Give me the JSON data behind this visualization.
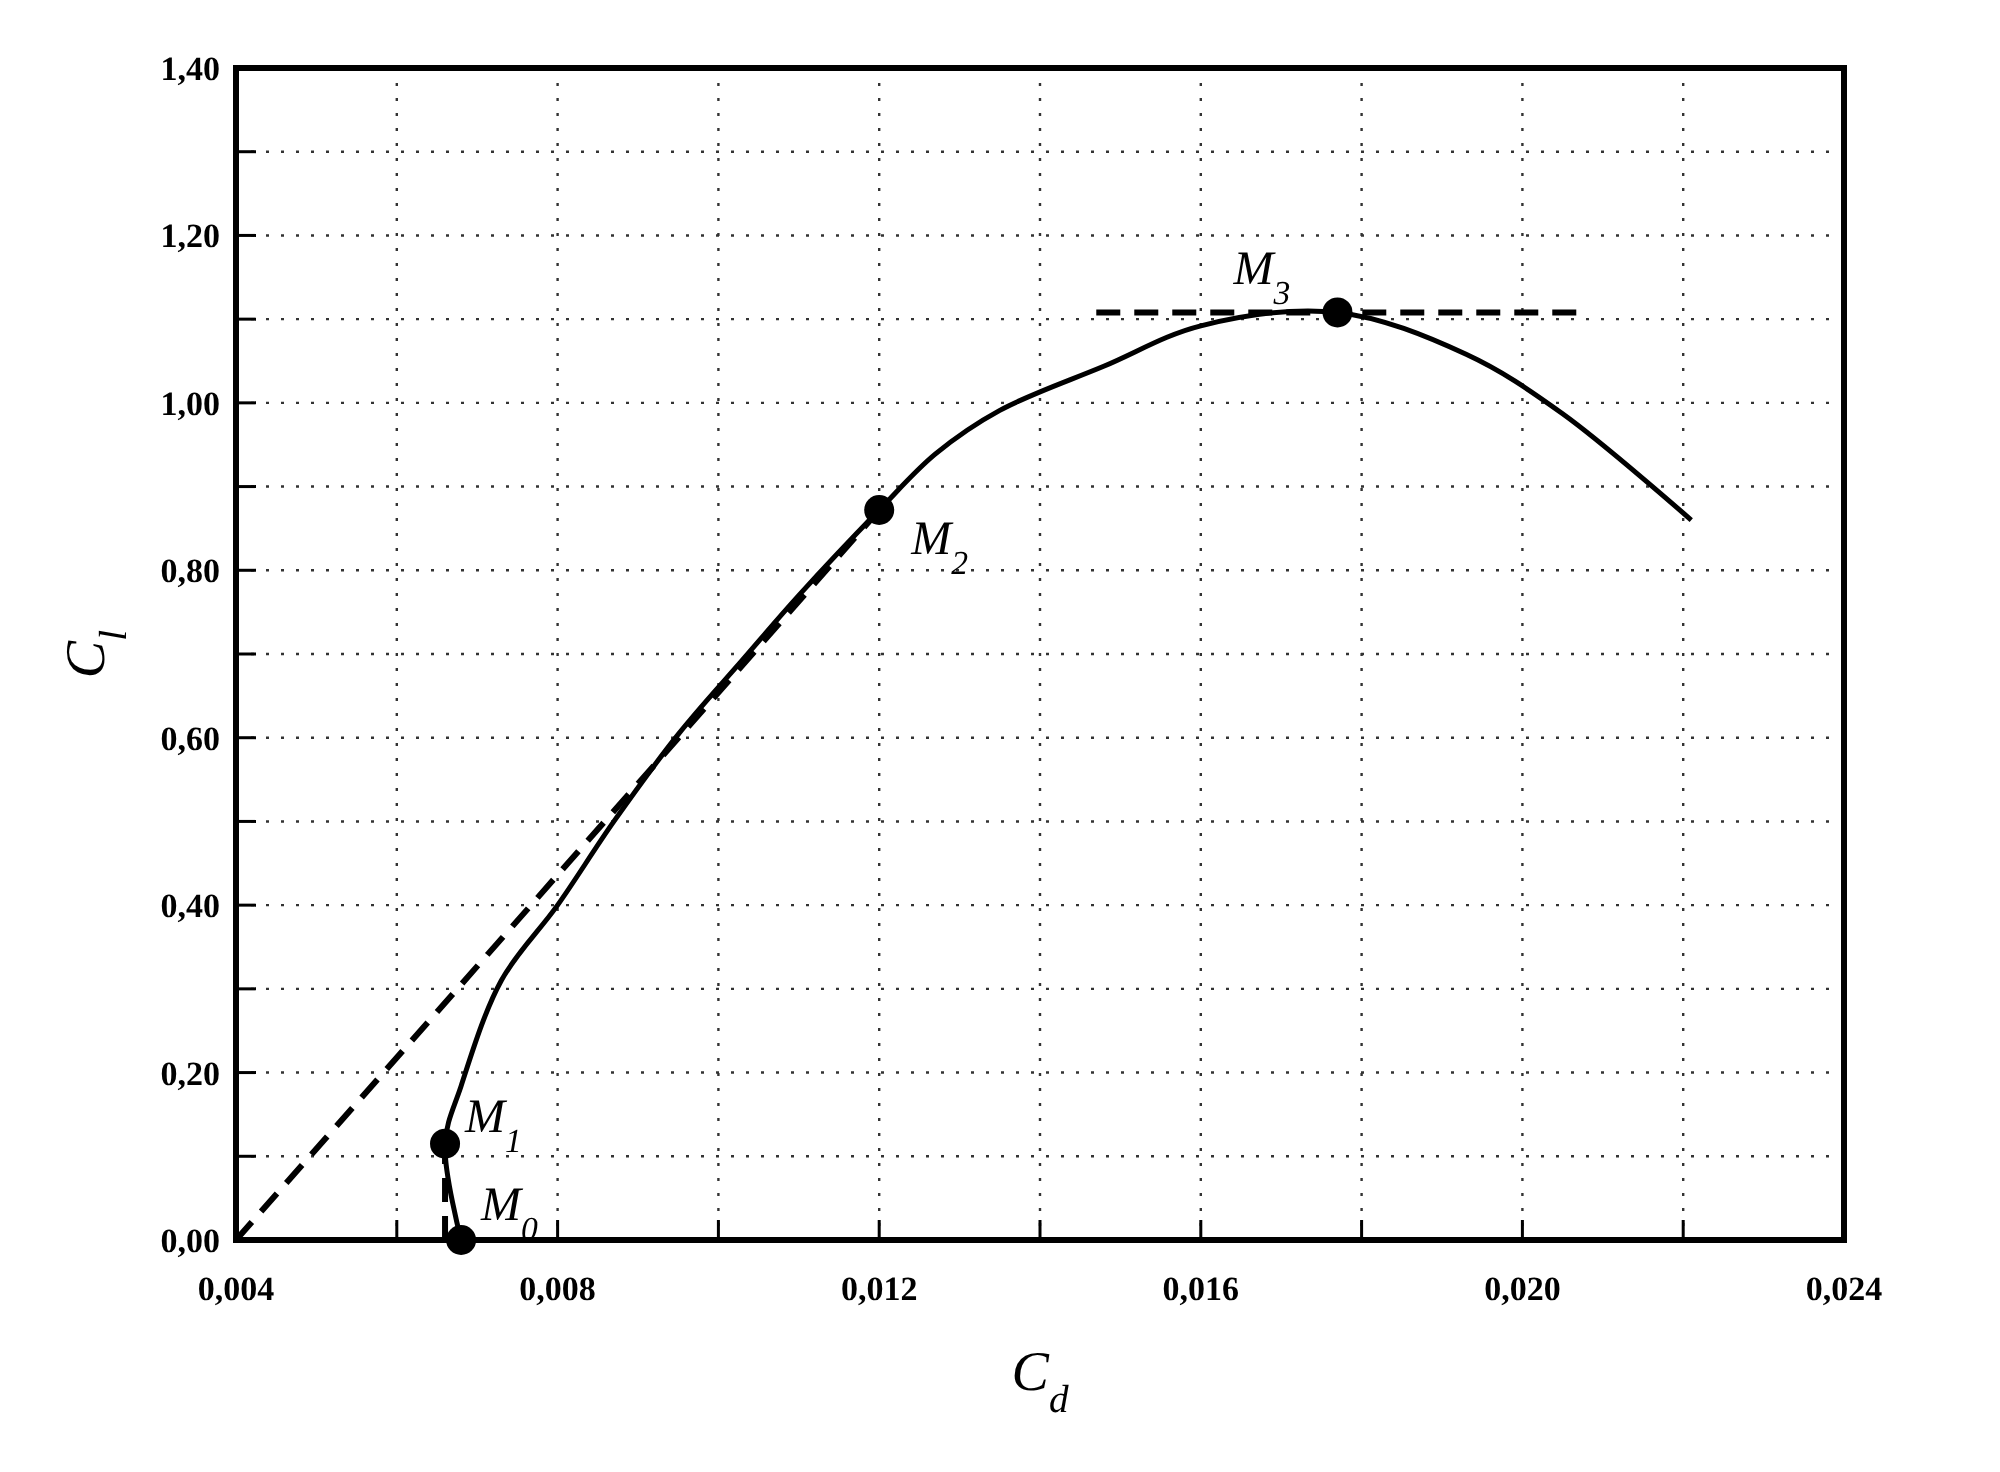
{
  "chart_data": {
    "type": "line",
    "xlabel": "C$_{d}$",
    "ylabel": "C$_{l}$",
    "xlim": [
      0.004,
      0.024
    ],
    "xticks": [
      {
        "value": 0.004,
        "label": "0,004"
      },
      {
        "value": 0.006,
        "label": null
      },
      {
        "value": 0.008,
        "label": "0,008"
      },
      {
        "value": 0.01,
        "label": null
      },
      {
        "value": 0.012,
        "label": "0,012"
      },
      {
        "value": 0.014,
        "label": null
      },
      {
        "value": 0.016,
        "label": "0,016"
      },
      {
        "value": 0.018,
        "label": null
      },
      {
        "value": 0.02,
        "label": "0,020"
      },
      {
        "value": 0.022,
        "label": null
      },
      {
        "value": 0.024,
        "label": "0,024"
      }
    ],
    "ylim": [
      0,
      1.4
    ],
    "yticks": [
      {
        "value": 0,
        "label": "0,00"
      },
      {
        "value": 0.1,
        "label": null
      },
      {
        "value": 0.2,
        "label": "0,20"
      },
      {
        "value": 0.3,
        "label": null
      },
      {
        "value": 0.4,
        "label": "0,40"
      },
      {
        "value": 0.5,
        "label": null
      },
      {
        "value": 0.6,
        "label": "0,60"
      },
      {
        "value": 0.7,
        "label": null
      },
      {
        "value": 0.8,
        "label": "0,80"
      },
      {
        "value": 0.9,
        "label": null
      },
      {
        "value": 1.0,
        "label": "1,00"
      },
      {
        "value": 1.1,
        "label": null
      },
      {
        "value": 1.2,
        "label": "1,20"
      },
      {
        "value": 1.3,
        "label": null
      },
      {
        "value": 1.4,
        "label": "1,40"
      }
    ],
    "grid": true,
    "series": [
      {
        "color": "#000000",
        "line_style": "solid",
        "x": [
          0.0068,
          0.0066,
          0.0068,
          0.0073,
          0.008,
          0.0087,
          0.0095,
          0.0103,
          0.011,
          0.012,
          0.0127,
          0.0135,
          0.0148,
          0.016,
          0.0177,
          0.0193,
          0.0205,
          0.0221
        ],
        "values": [
          0,
          0.115,
          0.184,
          0.31,
          0.4,
          0.5,
          0.604,
          0.693,
          0.77,
          0.872,
          0.939,
          0.991,
          1.044,
          1.092,
          1.108,
          1.058,
          0.987,
          0.86
        ]
      },
      {
        "type": "line",
        "color": "#000000",
        "line_style": "dashed",
        "x": [
          0.004,
          0.012
        ],
        "values": [
          0,
          0.872
        ]
      },
      {
        "type": "line",
        "color": "#000000",
        "line_style": "dashed",
        "x": [
          0.0147,
          0.0208
        ],
        "values": [
          1.108,
          1.108
        ]
      },
      {
        "type": "line",
        "color": "#000000",
        "line_style": "dashed",
        "x": [
          0.0066,
          0.0066
        ],
        "values": [
          0,
          0.115
        ]
      },
      {
        "type": "scatter",
        "color": "#000000",
        "marker": "circle",
        "x": [
          0.0068,
          0.0066,
          0.012,
          0.0177
        ],
        "values": [
          0,
          0.115,
          0.872,
          1.108
        ]
      }
    ],
    "annotations": [
      {
        "text": "M$_{0}$",
        "x": 0.0068,
        "y": 0
      },
      {
        "text": "M$_{1}$",
        "x": 0.0066,
        "y": 0.115
      },
      {
        "text": "M$_{2}$",
        "x": 0.012,
        "y": 0.872
      },
      {
        "text": "M$_{3}$",
        "x": 0.0177,
        "y": 1.108
      }
    ]
  }
}
